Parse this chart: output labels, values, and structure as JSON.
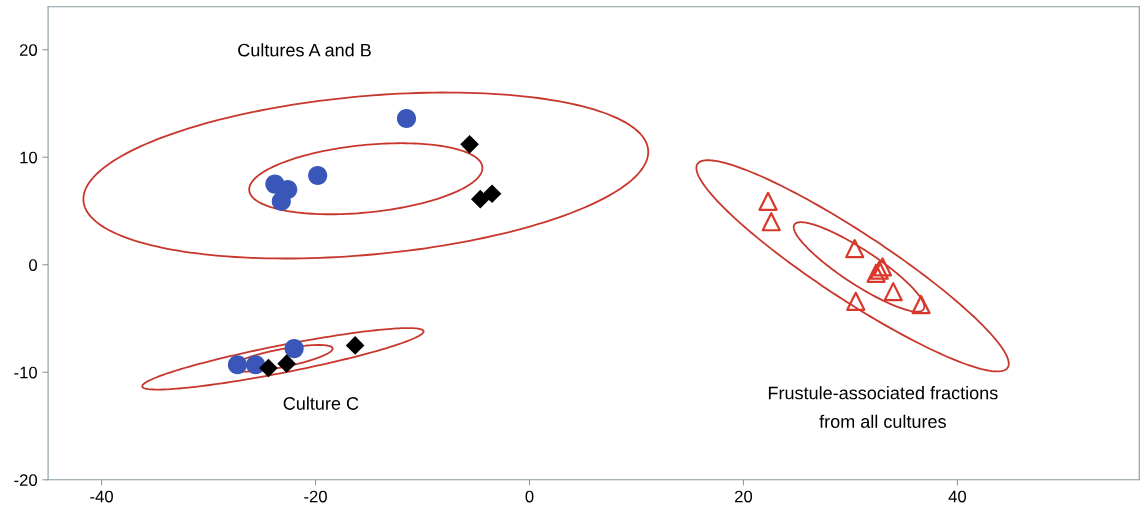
{
  "chart_data": {
    "type": "scatter",
    "xlim": [
      -45,
      57
    ],
    "ylim": [
      -20,
      24
    ],
    "xticks": [
      -40,
      -20,
      0,
      20,
      40
    ],
    "yticks": [
      -20,
      -10,
      0,
      10,
      20
    ],
    "grid": false,
    "legend": false,
    "series": [
      {
        "color": "#3a56b8",
        "marker": "circle",
        "x": [
          -11.5,
          -19.8,
          -23.8,
          -22.6,
          -23.2,
          -27.3,
          -25.6,
          -22.0
        ],
        "values": [
          13.6,
          8.3,
          7.5,
          7.0,
          5.9,
          -9.3,
          -9.3,
          -7.8
        ]
      },
      {
        "color": "#000000",
        "marker": "diamond",
        "x": [
          -5.6,
          -4.6,
          -3.5,
          -24.4,
          -22.7,
          -16.3
        ],
        "values": [
          11.2,
          6.1,
          6.6,
          -9.6,
          -9.2,
          -7.5
        ]
      },
      {
        "color": "#d9392b",
        "marker": "triangle",
        "x": [
          22.3,
          22.6,
          30.4,
          32.4,
          32.7,
          33.0,
          34.0,
          30.5,
          36.6
        ],
        "values": [
          5.9,
          4.0,
          1.5,
          -0.8,
          -0.5,
          -0.2,
          -2.5,
          -3.4,
          -3.7
        ]
      }
    ],
    "annotations": [
      "Cultures A and B",
      "Culture C",
      "Frustule-associated fractions\nfrom all cultures"
    ]
  }
}
